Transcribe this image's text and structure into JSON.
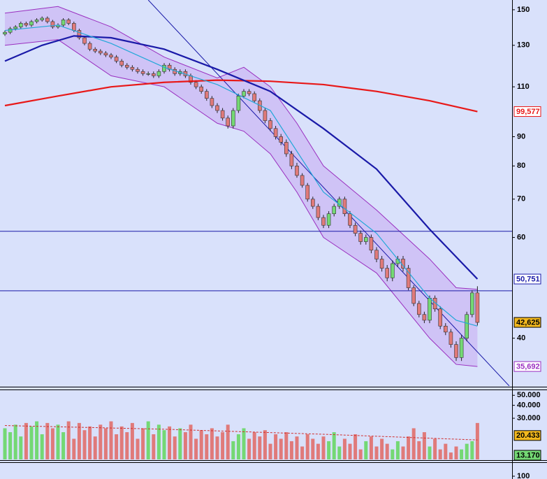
{
  "chart_data": {
    "type": "candlestick",
    "log_scale": true,
    "background": "#d9e1fb",
    "ylim": [
      33,
      156
    ],
    "yticks": [
      150,
      130,
      110,
      90,
      80,
      70,
      60,
      40
    ],
    "up_color": "#74d874",
    "down_color": "#e07a7a",
    "open": [
      136,
      137,
      139,
      140,
      142,
      141,
      143,
      144,
      145,
      143,
      140,
      141,
      144,
      142,
      138,
      134,
      131,
      128,
      127,
      126,
      125,
      124,
      122,
      120,
      119,
      118,
      117,
      116,
      116,
      115,
      117,
      120,
      118,
      116,
      117,
      115,
      112,
      110,
      108,
      105,
      102,
      100,
      97,
      94,
      100,
      106,
      108,
      107,
      104,
      100,
      96,
      93,
      90,
      88,
      84,
      80,
      77,
      74,
      70,
      68,
      65,
      63,
      66,
      68,
      70,
      66,
      63,
      61,
      59,
      60,
      57,
      55,
      53,
      51,
      54,
      55,
      53,
      49,
      46,
      44,
      43,
      47,
      45,
      42,
      41,
      39,
      37,
      40,
      44,
      48
    ],
    "high": [
      138,
      140,
      141,
      143,
      143,
      144,
      145,
      146,
      146,
      144,
      142,
      145,
      145,
      143,
      139,
      135,
      132,
      129,
      128,
      127,
      126,
      125,
      123,
      121,
      120,
      119,
      118,
      117,
      117,
      118,
      121,
      121,
      119,
      118,
      118,
      116,
      113,
      111,
      109,
      106,
      103,
      101,
      98,
      101,
      107,
      109,
      109,
      108,
      105,
      101,
      97,
      94,
      91,
      89,
      85,
      81,
      77.7,
      74.7,
      70.7,
      68.7,
      65.7,
      66.7,
      68.7,
      70.7,
      70.7,
      66.7,
      63.7,
      61.7,
      60.7,
      60.7,
      57.7,
      55.7,
      53.7,
      54.7,
      55.7,
      55.7,
      53.7,
      49.5,
      46.5,
      44.5,
      47.5,
      47.5,
      45.5,
      42.5,
      41.5,
      39.5,
      40.5,
      44.5,
      48.5,
      49.3
    ],
    "low": [
      135,
      136,
      138,
      139,
      140,
      140,
      142,
      143,
      142,
      139,
      139,
      140,
      141,
      137,
      133,
      130,
      127,
      126,
      125,
      124,
      123,
      121,
      119,
      118,
      117,
      116,
      115,
      115,
      114,
      114,
      116,
      117,
      115,
      115,
      114,
      111,
      109,
      107,
      104,
      101,
      99,
      96,
      93,
      93,
      99,
      105,
      106,
      103,
      99,
      95,
      92,
      89,
      87,
      83,
      79,
      76.3,
      73.3,
      69.3,
      67.3,
      64.3,
      62.3,
      62.3,
      65.3,
      67.3,
      65.3,
      62.3,
      60.3,
      58.3,
      58.3,
      56.3,
      54.3,
      52.3,
      50.3,
      50.3,
      53.3,
      52.3,
      48.5,
      45.5,
      43.5,
      42.5,
      42.5,
      44.5,
      41.5,
      40.5,
      38.5,
      36.5,
      36.5,
      39.5,
      43.5,
      42.1
    ],
    "close": [
      137,
      139,
      140,
      142,
      141,
      143,
      144,
      145,
      143,
      140,
      141,
      144,
      142,
      138,
      134,
      131,
      128,
      127,
      126,
      125,
      124,
      122,
      120,
      119,
      118,
      117,
      116,
      116,
      115,
      117,
      120,
      118,
      116,
      117,
      115,
      112,
      110,
      108,
      105,
      102,
      100,
      97,
      94,
      100,
      106,
      108,
      107,
      104,
      100,
      96,
      93,
      90,
      88,
      84,
      80,
      77,
      74,
      70,
      68,
      65,
      63,
      66,
      68,
      70,
      66,
      63,
      61,
      59,
      60,
      57,
      55,
      53,
      51,
      54,
      55,
      53,
      49,
      46,
      44,
      43,
      47,
      45,
      42,
      41,
      39,
      37,
      40,
      44,
      48,
      42.625
    ],
    "bands": {
      "color": "#9a2fc0",
      "fill": "#cbb8f4",
      "x": [
        0,
        10,
        20,
        30,
        40,
        45,
        50,
        55,
        60,
        70,
        80,
        85,
        89
      ],
      "upper": [
        148,
        152,
        140,
        124,
        114,
        119,
        110,
        95,
        80,
        67,
        55,
        49,
        48.7
      ],
      "lower": [
        130,
        133,
        115,
        110,
        95,
        92,
        84,
        72,
        60,
        52,
        40,
        36,
        35.692
      ]
    },
    "lines": [
      {
        "color": "#e81818",
        "x": [
          0,
          10,
          20,
          30,
          40,
          50,
          60,
          70,
          80,
          89
        ],
        "values": [
          102,
          106,
          110,
          112,
          113,
          112.5,
          111,
          108,
          104,
          99.577
        ]
      },
      {
        "color": "#1a1aa8",
        "x": [
          0,
          7,
          13,
          20,
          30,
          40,
          50,
          60,
          70,
          80,
          89
        ],
        "values": [
          122,
          130,
          135,
          134,
          128,
          118,
          108,
          93,
          79,
          62,
          50.751
        ]
      },
      {
        "color": "#22a8d8",
        "x": [
          0,
          10,
          20,
          30,
          40,
          50,
          60,
          70,
          80,
          85,
          89
        ],
        "values": [
          138,
          141,
          131,
          119,
          111,
          100,
          72,
          61,
          47,
          43,
          42
        ]
      }
    ],
    "hlines": [
      61.5,
      48.4
    ],
    "hline_color": "#1a1aa8",
    "trendline": {
      "color": "#1a1aa8",
      "x": [
        27,
        95
      ],
      "values": [
        156,
        33
      ]
    },
    "price_tags": [
      {
        "value": 99.577,
        "label": "99,577",
        "color": "#e81818",
        "fill": "#ffffff"
      },
      {
        "value": 50.751,
        "label": "50,751",
        "color": "#1a1aa8",
        "fill": "#ffffff"
      },
      {
        "value": 42.625,
        "label": "42,625",
        "color": "#000000",
        "fill": "#f2b81e"
      },
      {
        "value": 35.692,
        "label": "35,692",
        "color": "#9a2fc0",
        "fill": "#ffffff"
      }
    ],
    "volume": {
      "ylim": [
        12000,
        56000
      ],
      "yticks": [
        {
          "value": 50000,
          "label": "50.000"
        },
        {
          "value": 40000,
          "label": "40.000"
        },
        {
          "value": 30000,
          "label": "30.000"
        }
      ],
      "values": [
        24000,
        22000,
        26000,
        20000,
        27000,
        25000,
        28000,
        21000,
        27000,
        24000,
        26000,
        22000,
        28000,
        19000,
        27000,
        23000,
        25000,
        20000,
        26000,
        24000,
        28000,
        21000,
        25000,
        22000,
        27000,
        19000,
        24000,
        28000,
        21000,
        26000,
        23000,
        25000,
        20000,
        24000,
        22000,
        26000,
        19000,
        23000,
        21000,
        24000,
        20000,
        22000,
        26000,
        18000,
        21000,
        24000,
        19000,
        22000,
        20000,
        23000,
        17000,
        21000,
        19000,
        22000,
        18000,
        20000,
        16000,
        21000,
        19000,
        17000,
        20000,
        18000,
        22000,
        16000,
        19000,
        17000,
        21000,
        15000,
        18000,
        20000,
        16000,
        19000,
        17000,
        15000,
        18000,
        16000,
        20000,
        24000,
        18000,
        22000,
        16000,
        19000,
        15000,
        17000,
        14000,
        16000,
        15000,
        17000,
        18000,
        27000
      ],
      "ma": {
        "color": "#d03030",
        "x": [
          0,
          30,
          60,
          89
        ],
        "values": [
          25500,
          23500,
          21000,
          18500
        ]
      },
      "tags": [
        {
          "value": 20433,
          "label": "20.433",
          "color": "#000000",
          "fill": "#f2b81e"
        },
        {
          "value": 13170,
          "label": "13.170",
          "color": "#000000",
          "fill": "#74d874"
        }
      ]
    },
    "lower_pane": {
      "ylim": [
        96,
        104
      ],
      "yticks": [
        100
      ]
    }
  }
}
